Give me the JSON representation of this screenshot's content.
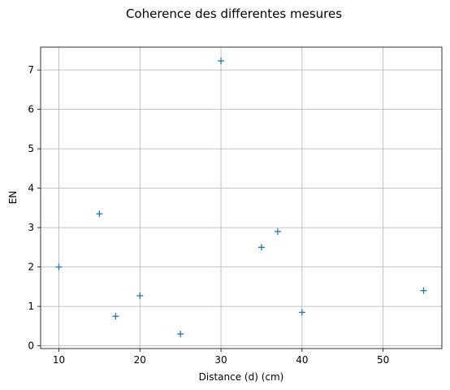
{
  "chart_data": {
    "type": "scatter",
    "title": "Coherence des differentes mesures",
    "xlabel": "Distance (d) (cm)",
    "ylabel": "EN",
    "xlim": [
      7.75,
      57.25
    ],
    "ylim": [
      -0.07,
      7.58
    ],
    "xticks": [
      10,
      20,
      30,
      40,
      50
    ],
    "yticks": [
      0,
      1,
      2,
      3,
      4,
      5,
      6,
      7
    ],
    "grid": true,
    "marker": "+",
    "color": "#1f77b4",
    "series": [
      {
        "x": [
          10,
          15,
          17,
          20,
          25,
          30,
          35,
          37,
          40,
          55
        ],
        "y": [
          2.0,
          3.35,
          0.75,
          1.27,
          0.3,
          7.23,
          2.5,
          2.9,
          0.85,
          1.4
        ]
      }
    ]
  }
}
